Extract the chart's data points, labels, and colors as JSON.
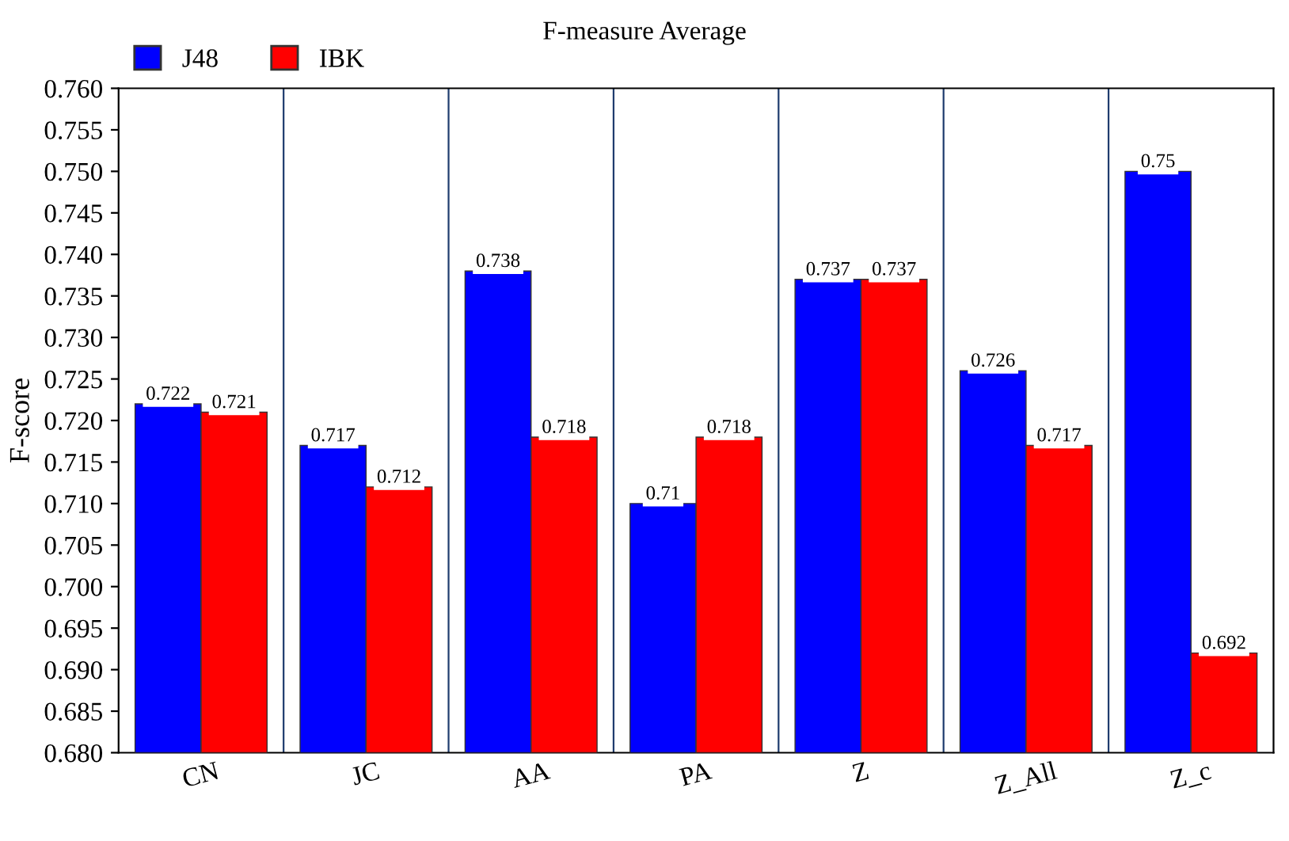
{
  "chart_data": {
    "type": "bar",
    "title": "F-measure Average",
    "ylabel": "F-score",
    "categories": [
      "CN",
      "JC",
      "AA",
      "PA",
      "Z",
      "Z_All",
      "Z_c"
    ],
    "series": [
      {
        "name": "J48",
        "color": "#0000ff",
        "values": [
          0.722,
          0.717,
          0.738,
          0.71,
          0.737,
          0.726,
          0.75
        ]
      },
      {
        "name": "IBK",
        "color": "#ff0000",
        "values": [
          0.721,
          0.712,
          0.718,
          0.718,
          0.737,
          0.717,
          0.692
        ]
      }
    ],
    "ylim": [
      0.68,
      0.76
    ],
    "yticks": [
      {
        "value": 0.68,
        "label": "0.680"
      },
      {
        "value": 0.685,
        "label": "0.685"
      },
      {
        "value": 0.69,
        "label": "0.690"
      },
      {
        "value": 0.695,
        "label": "0.695"
      },
      {
        "value": 0.7,
        "label": "0.700"
      },
      {
        "value": 0.705,
        "label": "0.705"
      },
      {
        "value": 0.71,
        "label": "0.710"
      },
      {
        "value": 0.715,
        "label": "0.715"
      },
      {
        "value": 0.72,
        "label": "0.720"
      },
      {
        "value": 0.725,
        "label": "0.725"
      },
      {
        "value": 0.73,
        "label": "0.730"
      },
      {
        "value": 0.735,
        "label": "0.735"
      },
      {
        "value": 0.74,
        "label": "0.740"
      },
      {
        "value": 0.745,
        "label": "0.745"
      },
      {
        "value": 0.75,
        "label": "0.750"
      },
      {
        "value": 0.755,
        "label": "0.755"
      },
      {
        "value": 0.76,
        "label": "0.760"
      }
    ],
    "grid": "x",
    "legend": "top left",
    "data_labels": true
  }
}
